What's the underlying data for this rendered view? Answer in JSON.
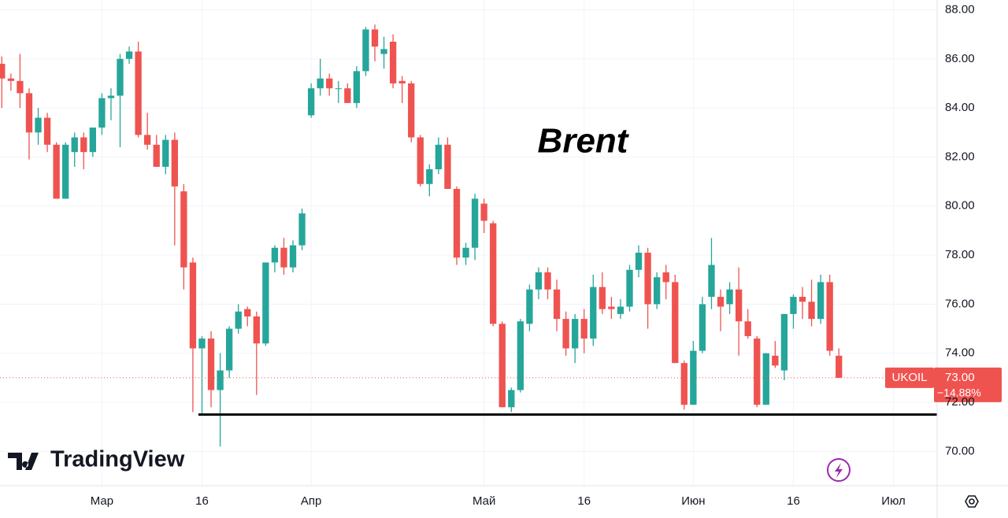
{
  "chart_data": {
    "type": "candlestick",
    "title": "Brent",
    "brand": "TradingView",
    "x": [
      0,
      1,
      2,
      3,
      4,
      5,
      6,
      7,
      8,
      9,
      10,
      11,
      12,
      13,
      14,
      15,
      16,
      17,
      18,
      19,
      20,
      21,
      22,
      23,
      24,
      25,
      26,
      27,
      28,
      29,
      30,
      31,
      32,
      33,
      34,
      35,
      36,
      37,
      38,
      39,
      40,
      41,
      42,
      43,
      44,
      45,
      46,
      47,
      48,
      49,
      50,
      51,
      52,
      53,
      54,
      55,
      56,
      57,
      58,
      59,
      60,
      61,
      62,
      63,
      64,
      65,
      66,
      67,
      68,
      69,
      70,
      71,
      72,
      73,
      74,
      75,
      76,
      77,
      78,
      79,
      80,
      81,
      82,
      83,
      84,
      85,
      86,
      87,
      88,
      89,
      90,
      91,
      92
    ],
    "open": [
      85.8,
      85.2,
      85.1,
      84.6,
      83.0,
      83.6,
      82.5,
      80.3,
      82.2,
      82.8,
      82.2,
      83.2,
      84.4,
      84.5,
      86.0,
      86.3,
      82.9,
      82.5,
      81.6,
      82.7,
      80.6,
      77.7,
      74.2,
      74.6,
      72.5,
      73.3,
      75.0,
      75.8,
      75.5,
      74.4,
      77.7,
      78.3,
      77.5,
      78.4,
      83.7,
      84.8,
      85.2,
      84.8,
      84.8,
      84.2,
      85.5,
      87.2,
      86.2,
      86.7,
      85.1,
      85.0,
      82.8,
      80.9,
      81.5,
      82.5,
      80.7,
      77.9,
      78.3,
      80.1,
      79.3,
      75.2,
      71.8,
      72.5,
      75.2,
      76.6,
      77.3,
      76.6,
      75.4,
      74.2,
      75.4,
      74.6,
      76.7,
      75.9,
      75.6,
      75.9,
      77.4,
      78.1,
      76.0,
      77.3,
      76.9,
      73.6,
      71.9,
      74.1,
      76.3,
      76.3,
      76.0,
      76.6,
      75.3,
      74.6,
      71.9,
      73.9,
      73.3,
      75.6,
      76.3,
      76.1,
      75.4,
      76.9,
      73.9
    ],
    "high": [
      86.1,
      85.4,
      86.2,
      84.8,
      84.0,
      83.8,
      82.6,
      82.6,
      83.0,
      83.0,
      83.2,
      84.6,
      84.8,
      86.2,
      86.5,
      86.7,
      83.8,
      82.9,
      82.9,
      83.0,
      80.9,
      77.9,
      74.7,
      74.9,
      74.0,
      75.1,
      76.0,
      75.9,
      75.7,
      77.7,
      78.4,
      78.7,
      78.6,
      79.9,
      85.0,
      86.0,
      85.4,
      85.1,
      85.0,
      85.7,
      87.3,
      87.4,
      86.9,
      87.0,
      85.3,
      85.1,
      82.9,
      81.7,
      82.8,
      82.8,
      80.8,
      78.5,
      80.5,
      80.3,
      79.4,
      75.3,
      72.6,
      75.4,
      76.8,
      77.5,
      77.5,
      77.0,
      75.7,
      75.6,
      75.8,
      77.2,
      77.3,
      76.3,
      76.2,
      77.6,
      78.4,
      78.3,
      77.3,
      77.6,
      77.2,
      73.7,
      74.5,
      76.3,
      78.7,
      76.6,
      76.9,
      77.5,
      75.8,
      74.7,
      74.0,
      74.5,
      75.6,
      76.4,
      76.7,
      77.0,
      77.2,
      77.2,
      74.2
    ],
    "low": [
      84.0,
      84.7,
      84.0,
      81.9,
      82.5,
      82.2,
      80.3,
      80.3,
      81.6,
      81.5,
      82.0,
      82.9,
      83.5,
      82.4,
      85.8,
      82.8,
      82.3,
      81.6,
      81.3,
      78.4,
      76.6,
      71.6,
      71.5,
      71.8,
      70.2,
      73.0,
      74.8,
      75.1,
      72.3,
      74.3,
      77.3,
      77.2,
      77.3,
      78.2,
      83.6,
      84.5,
      84.5,
      84.2,
      84.2,
      84.0,
      85.3,
      85.9,
      85.6,
      84.8,
      84.2,
      82.6,
      80.8,
      80.4,
      81.3,
      80.7,
      77.6,
      77.6,
      77.8,
      78.9,
      75.1,
      71.8,
      71.6,
      72.4,
      74.9,
      76.2,
      76.2,
      74.9,
      73.9,
      73.6,
      74.0,
      74.3,
      75.6,
      75.4,
      75.4,
      75.7,
      77.1,
      75.0,
      75.8,
      76.2,
      73.6,
      71.7,
      71.9,
      74.0,
      75.8,
      74.9,
      75.6,
      73.9,
      74.6,
      71.8,
      71.9,
      73.4,
      72.9,
      75.0,
      75.4,
      75.1,
      75.2,
      73.9,
      73.0
    ],
    "close": [
      85.2,
      85.1,
      84.6,
      83.0,
      83.6,
      82.5,
      80.3,
      82.5,
      82.8,
      82.2,
      83.2,
      84.4,
      84.5,
      86.0,
      86.3,
      82.9,
      82.5,
      81.6,
      82.7,
      80.8,
      77.5,
      74.2,
      74.6,
      72.5,
      73.3,
      75.0,
      75.7,
      75.5,
      74.4,
      77.7,
      78.3,
      77.5,
      78.4,
      79.7,
      84.8,
      85.2,
      84.8,
      84.8,
      84.2,
      85.5,
      87.2,
      86.5,
      86.4,
      85.0,
      85.0,
      82.8,
      80.9,
      81.5,
      82.5,
      80.7,
      77.9,
      78.3,
      80.3,
      79.4,
      75.2,
      71.8,
      72.5,
      75.3,
      76.6,
      77.3,
      76.6,
      75.4,
      74.2,
      75.4,
      74.6,
      76.7,
      75.8,
      75.8,
      75.9,
      77.4,
      78.1,
      76.0,
      77.1,
      76.9,
      73.6,
      71.9,
      74.1,
      76.0,
      77.6,
      75.9,
      76.6,
      75.3,
      74.7,
      71.9,
      74.0,
      73.5,
      75.6,
      76.3,
      76.1,
      75.4,
      76.9,
      74.1,
      73.0
    ],
    "up_color": "#26a69a",
    "down_color": "#ef5350",
    "xlim": [
      -0.2,
      102.8
    ],
    "ylim": [
      68.6,
      88.4
    ],
    "xticks": [
      {
        "value": 11,
        "label": "Мар"
      },
      {
        "value": 22,
        "label": "16"
      },
      {
        "value": 34,
        "label": "Апр"
      },
      {
        "value": 53,
        "label": "Май"
      },
      {
        "value": 64,
        "label": "16"
      },
      {
        "value": 76,
        "label": "Июн"
      },
      {
        "value": 87,
        "label": "16"
      },
      {
        "value": 98,
        "label": "Июл"
      }
    ],
    "yticks": [
      {
        "value": 70,
        "label": "70.00"
      },
      {
        "value": 72,
        "label": "72.00"
      },
      {
        "value": 74,
        "label": "74.00"
      },
      {
        "value": 76,
        "label": "76.00"
      },
      {
        "value": 78,
        "label": "78.00"
      },
      {
        "value": 80,
        "label": "80.00"
      },
      {
        "value": 82,
        "label": "82.00"
      },
      {
        "value": 84,
        "label": "84.00"
      },
      {
        "value": 86,
        "label": "86.00"
      },
      {
        "value": 88,
        "label": "88.00"
      }
    ],
    "grid": true,
    "support": {
      "value": 71.5,
      "from": 21.6
    },
    "last_label": {
      "symbol": "UKOIL",
      "price": "73.00",
      "change": "−14.88%"
    }
  }
}
